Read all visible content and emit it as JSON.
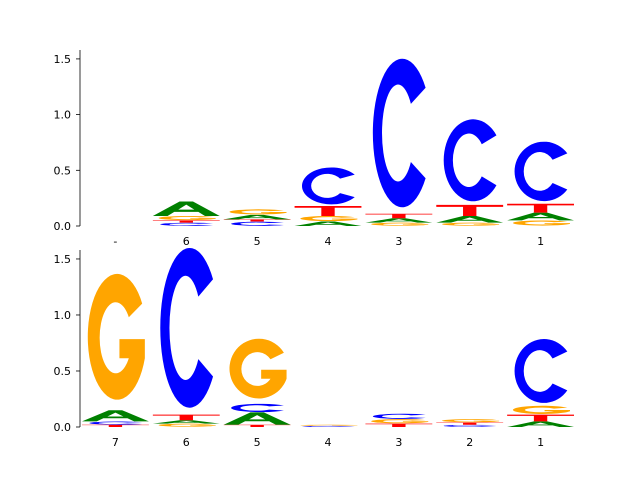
{
  "chart_data": [
    {
      "type": "sequence-logo",
      "title": "",
      "xlabel": "",
      "ylabel": "",
      "ylim": [
        0,
        1.58
      ],
      "yticks": [
        0.0,
        0.5,
        1.0,
        1.5
      ],
      "ytick_labels": [
        "0.0",
        "0.5",
        "1.0",
        "1.5"
      ],
      "categories": [
        "-",
        "6",
        "5",
        "4",
        "3",
        "2",
        "1"
      ],
      "grid": false,
      "legend": "none",
      "positions": [
        {
          "label": "-",
          "letters": []
        },
        {
          "label": "6",
          "letters": [
            {
              "base": "C",
              "value": 0.03
            },
            {
              "base": "T",
              "value": 0.02
            },
            {
              "base": "G",
              "value": 0.04
            },
            {
              "base": "A",
              "value": 0.13
            }
          ]
        },
        {
          "label": "5",
          "letters": [
            {
              "base": "C",
              "value": 0.04
            },
            {
              "base": "T",
              "value": 0.02
            },
            {
              "base": "A",
              "value": 0.04
            },
            {
              "base": "G",
              "value": 0.05
            }
          ]
        },
        {
          "label": "4",
          "letters": [
            {
              "base": "A",
              "value": 0.04
            },
            {
              "base": "G",
              "value": 0.05
            },
            {
              "base": "T",
              "value": 0.09
            },
            {
              "base": "C",
              "value": 0.36
            }
          ]
        },
        {
          "label": "3",
          "letters": [
            {
              "base": "G",
              "value": 0.03
            },
            {
              "base": "A",
              "value": 0.04
            },
            {
              "base": "T",
              "value": 0.04
            },
            {
              "base": "C",
              "value": 1.45
            }
          ]
        },
        {
          "label": "2",
          "letters": [
            {
              "base": "G",
              "value": 0.03
            },
            {
              "base": "A",
              "value": 0.06
            },
            {
              "base": "T",
              "value": 0.1
            },
            {
              "base": "C",
              "value": 0.8
            }
          ]
        },
        {
          "label": "1",
          "letters": [
            {
              "base": "G",
              "value": 0.05
            },
            {
              "base": "A",
              "value": 0.07
            },
            {
              "base": "T",
              "value": 0.08
            },
            {
              "base": "C",
              "value": 0.58
            }
          ]
        }
      ]
    },
    {
      "type": "sequence-logo",
      "title": "",
      "xlabel": "",
      "ylabel": "",
      "ylim": [
        0,
        1.58
      ],
      "yticks": [
        0.0,
        0.5,
        1.0,
        1.5
      ],
      "ytick_labels": [
        "0.0",
        "0.5",
        "1.0",
        "1.5"
      ],
      "categories": [
        "7",
        "6",
        "5",
        "4",
        "3",
        "2",
        "1"
      ],
      "grid": false,
      "legend": "none",
      "positions": [
        {
          "label": "7",
          "letters": [
            {
              "base": "T",
              "value": 0.02
            },
            {
              "base": "C",
              "value": 0.03
            },
            {
              "base": "A",
              "value": 0.1
            },
            {
              "base": "G",
              "value": 1.22
            }
          ]
        },
        {
          "label": "6",
          "letters": [
            {
              "base": "G",
              "value": 0.03
            },
            {
              "base": "A",
              "value": 0.03
            },
            {
              "base": "T",
              "value": 0.05
            },
            {
              "base": "C",
              "value": 1.55
            }
          ]
        },
        {
          "label": "5",
          "letters": [
            {
              "base": "T",
              "value": 0.02
            },
            {
              "base": "A",
              "value": 0.11
            },
            {
              "base": "C",
              "value": 0.08
            },
            {
              "base": "G",
              "value": 0.58
            }
          ]
        },
        {
          "label": "4",
          "letters": [
            {
              "base": "C",
              "value": 0.01
            },
            {
              "base": "G",
              "value": 0.01
            }
          ]
        },
        {
          "label": "3",
          "letters": [
            {
              "base": "T",
              "value": 0.03
            },
            {
              "base": "G",
              "value": 0.04
            },
            {
              "base": "C",
              "value": 0.05
            }
          ]
        },
        {
          "label": "2",
          "letters": [
            {
              "base": "C",
              "value": 0.02
            },
            {
              "base": "T",
              "value": 0.02
            },
            {
              "base": "G",
              "value": 0.03
            }
          ]
        },
        {
          "label": "1",
          "letters": [
            {
              "base": "A",
              "value": 0.05
            },
            {
              "base": "T",
              "value": 0.06
            },
            {
              "base": "G",
              "value": 0.08
            },
            {
              "base": "C",
              "value": 0.62
            }
          ]
        }
      ]
    }
  ],
  "colors": {
    "A": "#008000",
    "C": "#0000ff",
    "G": "#ffa500",
    "T": "#ff0000",
    "axis": "#000000",
    "text": "#000000"
  }
}
